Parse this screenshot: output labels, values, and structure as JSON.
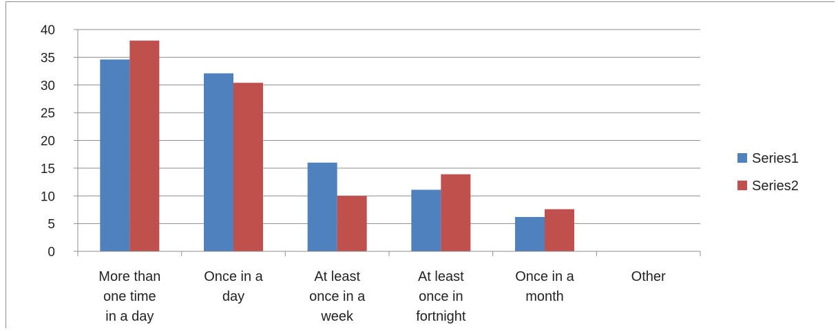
{
  "chart_data": {
    "type": "bar",
    "title": "",
    "xlabel": "",
    "ylabel": "",
    "categories": [
      [
        "More than",
        "one time",
        "in a day"
      ],
      [
        "Once in a",
        "day"
      ],
      [
        "At least",
        "once in a",
        "week"
      ],
      [
        "At least",
        "once in",
        "fortnight"
      ],
      [
        "Once in a",
        "month"
      ],
      [
        "Other"
      ]
    ],
    "series": [
      {
        "name": "Series1",
        "color": "#4f81bd",
        "values": [
          34.6,
          32.1,
          16.0,
          11.1,
          6.2,
          0
        ]
      },
      {
        "name": "Series2",
        "color": "#c0504d",
        "values": [
          38.0,
          30.4,
          10.0,
          13.9,
          7.6,
          0
        ]
      }
    ],
    "ylim": [
      0,
      40
    ],
    "yticks": [
      "0",
      "5",
      "10",
      "15",
      "20",
      "25",
      "30",
      "35",
      "40"
    ],
    "grid": true,
    "legend_position": "right"
  }
}
